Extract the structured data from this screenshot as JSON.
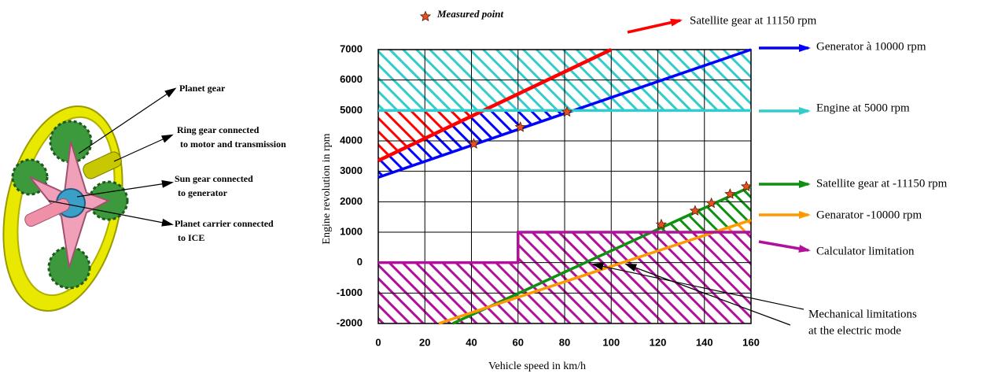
{
  "chart_data": {
    "type": "line",
    "xlabel": "Vehicle speed in km/h",
    "ylabel": "Engine revolution in rpm",
    "xlim": [
      0,
      160
    ],
    "xticks": [
      0,
      20,
      40,
      60,
      80,
      100,
      120,
      140,
      160
    ],
    "ylim": [
      -2000,
      7000
    ],
    "yticks": [
      -2000,
      -1000,
      0,
      1000,
      2000,
      3000,
      4000,
      5000,
      6000,
      7000
    ],
    "grid": true,
    "series": [
      {
        "name": "Satellite gear at 11150 rpm",
        "color": "#ff0000",
        "x": [
          0,
          100
        ],
        "values": [
          3350,
          7000
        ]
      },
      {
        "name": "Generator à 10000 rpm",
        "color": "#0000ff",
        "x": [
          0,
          160
        ],
        "values": [
          2800,
          7000
        ]
      },
      {
        "name": "Engine at  5000 rpm",
        "color": "#33cccc",
        "x": [
          0,
          160
        ],
        "values": [
          5000,
          5000
        ]
      },
      {
        "name": "Satellite gear at -11150 rpm",
        "color": "#109010",
        "x": [
          32,
          160
        ],
        "values": [
          -2000,
          2500
        ]
      },
      {
        "name": "Genarator -10000 rpm",
        "color": "#ff9900",
        "x": [
          26,
          160
        ],
        "values": [
          -2000,
          1400
        ]
      },
      {
        "name": "Calculator limitation",
        "color": "#b0109a",
        "x": [
          0,
          60,
          60,
          160
        ],
        "values": [
          0,
          0,
          1000,
          1000
        ]
      }
    ],
    "measured_points": {
      "name": "Measured point",
      "color": "#e85020",
      "x": [
        41,
        61,
        81,
        121.5,
        136,
        143,
        151,
        158
      ],
      "values": [
        3900,
        4450,
        4950,
        1250,
        1700,
        1950,
        2250,
        2500
      ]
    },
    "annotation": [
      "Mechanical limitations",
      " at the electric mode"
    ]
  },
  "diagram": {
    "labels": [
      [
        "Planet gear"
      ],
      [
        "Ring gear connected",
        "to motor and transmission"
      ],
      [
        "Sun gear connected",
        "to generator"
      ],
      [
        "Planet carrier connected",
        "to ICE"
      ]
    ]
  }
}
